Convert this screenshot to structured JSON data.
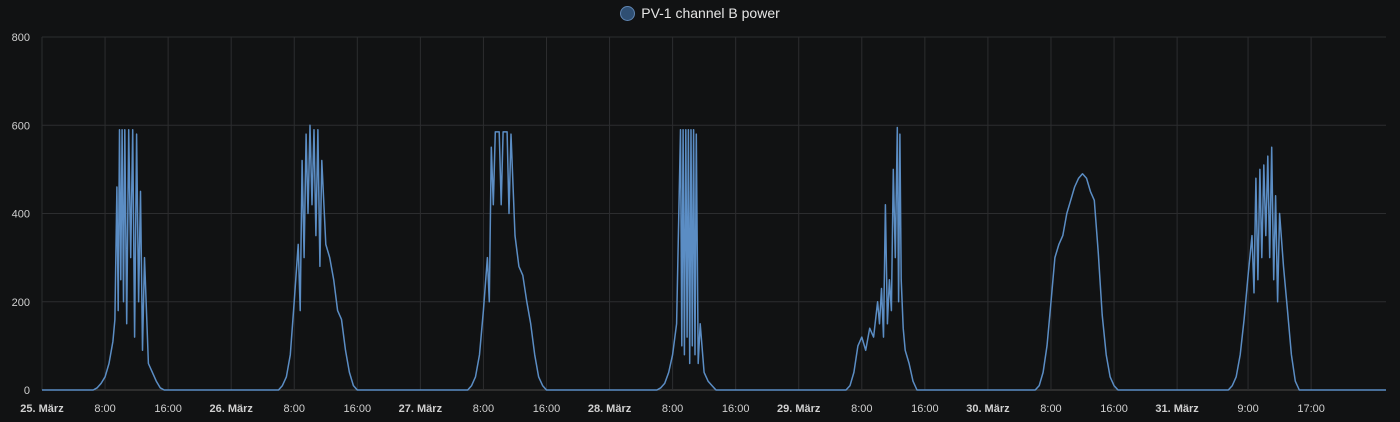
{
  "chart_data": {
    "type": "line",
    "title": "",
    "xlabel": "",
    "ylabel": "",
    "ylim": [
      0,
      800
    ],
    "y_ticks": [
      0,
      200,
      400,
      600,
      800
    ],
    "xlim": [
      "2025-03-25T00:00",
      "2025-04-01T02:30"
    ],
    "grid": true,
    "legend_position": "top-center",
    "x_tick_labels": [
      {
        "at": "2025-03-25T00:00",
        "label": "25. März",
        "bold": true
      },
      {
        "at": "2025-03-25T08:00",
        "label": "8:00",
        "bold": false
      },
      {
        "at": "2025-03-25T16:00",
        "label": "16:00",
        "bold": false
      },
      {
        "at": "2025-03-26T00:00",
        "label": "26. März",
        "bold": true
      },
      {
        "at": "2025-03-26T08:00",
        "label": "8:00",
        "bold": false
      },
      {
        "at": "2025-03-26T16:00",
        "label": "16:00",
        "bold": false
      },
      {
        "at": "2025-03-27T00:00",
        "label": "27. März",
        "bold": true
      },
      {
        "at": "2025-03-27T08:00",
        "label": "8:00",
        "bold": false
      },
      {
        "at": "2025-03-27T16:00",
        "label": "16:00",
        "bold": false
      },
      {
        "at": "2025-03-28T00:00",
        "label": "28. März",
        "bold": true
      },
      {
        "at": "2025-03-28T08:00",
        "label": "8:00",
        "bold": false
      },
      {
        "at": "2025-03-28T16:00",
        "label": "16:00",
        "bold": false
      },
      {
        "at": "2025-03-29T00:00",
        "label": "29. März",
        "bold": true
      },
      {
        "at": "2025-03-29T08:00",
        "label": "8:00",
        "bold": false
      },
      {
        "at": "2025-03-29T16:00",
        "label": "16:00",
        "bold": false
      },
      {
        "at": "2025-03-30T00:00",
        "label": "30. März",
        "bold": true
      },
      {
        "at": "2025-03-30T08:00",
        "label": "8:00",
        "bold": false
      },
      {
        "at": "2025-03-30T16:00",
        "label": "16:00",
        "bold": false
      },
      {
        "at": "2025-03-31T00:00",
        "label": "31. März",
        "bold": true
      },
      {
        "at": "2025-03-31T09:00",
        "label": "9:00",
        "bold": false
      },
      {
        "at": "2025-03-31T17:00",
        "label": "17:00",
        "bold": false
      }
    ],
    "series": [
      {
        "name": "PV-1 channel B power",
        "color": "#5b8dc4",
        "points": [
          [
            "2025-03-25T00:00",
            0
          ],
          [
            "2025-03-25T06:30",
            0
          ],
          [
            "2025-03-25T07:00",
            5
          ],
          [
            "2025-03-25T07:30",
            15
          ],
          [
            "2025-03-25T08:00",
            30
          ],
          [
            "2025-03-25T08:30",
            60
          ],
          [
            "2025-03-25T09:00",
            110
          ],
          [
            "2025-03-25T09:15",
            160
          ],
          [
            "2025-03-25T09:30",
            460
          ],
          [
            "2025-03-25T09:40",
            180
          ],
          [
            "2025-03-25T09:50",
            590
          ],
          [
            "2025-03-25T10:00",
            250
          ],
          [
            "2025-03-25T10:10",
            590
          ],
          [
            "2025-03-25T10:20",
            200
          ],
          [
            "2025-03-25T10:30",
            590
          ],
          [
            "2025-03-25T10:45",
            150
          ],
          [
            "2025-03-25T11:00",
            590
          ],
          [
            "2025-03-25T11:15",
            300
          ],
          [
            "2025-03-25T11:30",
            590
          ],
          [
            "2025-03-25T11:45",
            120
          ],
          [
            "2025-03-25T12:00",
            580
          ],
          [
            "2025-03-25T12:15",
            200
          ],
          [
            "2025-03-25T12:30",
            450
          ],
          [
            "2025-03-25T12:45",
            90
          ],
          [
            "2025-03-25T13:00",
            300
          ],
          [
            "2025-03-25T13:30",
            60
          ],
          [
            "2025-03-25T14:00",
            40
          ],
          [
            "2025-03-25T14:30",
            20
          ],
          [
            "2025-03-25T15:00",
            5
          ],
          [
            "2025-03-25T15:30",
            0
          ],
          [
            "2025-03-26T06:00",
            0
          ],
          [
            "2025-03-26T06:30",
            10
          ],
          [
            "2025-03-26T07:00",
            30
          ],
          [
            "2025-03-26T07:30",
            80
          ],
          [
            "2025-03-26T08:00",
            200
          ],
          [
            "2025-03-26T08:30",
            330
          ],
          [
            "2025-03-26T08:45",
            180
          ],
          [
            "2025-03-26T09:00",
            520
          ],
          [
            "2025-03-26T09:15",
            300
          ],
          [
            "2025-03-26T09:30",
            580
          ],
          [
            "2025-03-26T09:45",
            400
          ],
          [
            "2025-03-26T10:00",
            600
          ],
          [
            "2025-03-26T10:15",
            420
          ],
          [
            "2025-03-26T10:30",
            590
          ],
          [
            "2025-03-26T10:45",
            350
          ],
          [
            "2025-03-26T11:00",
            590
          ],
          [
            "2025-03-26T11:15",
            280
          ],
          [
            "2025-03-26T11:30",
            520
          ],
          [
            "2025-03-26T12:00",
            330
          ],
          [
            "2025-03-26T12:30",
            300
          ],
          [
            "2025-03-26T13:00",
            250
          ],
          [
            "2025-03-26T13:30",
            180
          ],
          [
            "2025-03-26T14:00",
            160
          ],
          [
            "2025-03-26T14:30",
            90
          ],
          [
            "2025-03-26T15:00",
            40
          ],
          [
            "2025-03-26T15:30",
            10
          ],
          [
            "2025-03-26T16:00",
            0
          ],
          [
            "2025-03-27T06:00",
            0
          ],
          [
            "2025-03-27T06:30",
            10
          ],
          [
            "2025-03-27T07:00",
            30
          ],
          [
            "2025-03-27T07:30",
            80
          ],
          [
            "2025-03-27T08:00",
            180
          ],
          [
            "2025-03-27T08:30",
            300
          ],
          [
            "2025-03-27T08:45",
            200
          ],
          [
            "2025-03-27T09:00",
            550
          ],
          [
            "2025-03-27T09:15",
            420
          ],
          [
            "2025-03-27T09:30",
            585
          ],
          [
            "2025-03-27T10:00",
            585
          ],
          [
            "2025-03-27T10:15",
            420
          ],
          [
            "2025-03-27T10:30",
            585
          ],
          [
            "2025-03-27T11:00",
            585
          ],
          [
            "2025-03-27T11:15",
            400
          ],
          [
            "2025-03-27T11:30",
            580
          ],
          [
            "2025-03-27T12:00",
            350
          ],
          [
            "2025-03-27T12:30",
            280
          ],
          [
            "2025-03-27T13:00",
            260
          ],
          [
            "2025-03-27T13:30",
            200
          ],
          [
            "2025-03-27T14:00",
            150
          ],
          [
            "2025-03-27T14:30",
            80
          ],
          [
            "2025-03-27T15:00",
            30
          ],
          [
            "2025-03-27T15:30",
            10
          ],
          [
            "2025-03-27T16:00",
            0
          ],
          [
            "2025-03-28T06:00",
            0
          ],
          [
            "2025-03-28T06:30",
            5
          ],
          [
            "2025-03-28T07:00",
            15
          ],
          [
            "2025-03-28T07:30",
            40
          ],
          [
            "2025-03-28T08:00",
            80
          ],
          [
            "2025-03-28T08:30",
            150
          ],
          [
            "2025-03-28T09:00",
            590
          ],
          [
            "2025-03-28T09:10",
            100
          ],
          [
            "2025-03-28T09:20",
            590
          ],
          [
            "2025-03-28T09:30",
            80
          ],
          [
            "2025-03-28T09:40",
            590
          ],
          [
            "2025-03-28T09:50",
            120
          ],
          [
            "2025-03-28T10:00",
            590
          ],
          [
            "2025-03-28T10:10",
            60
          ],
          [
            "2025-03-28T10:20",
            590
          ],
          [
            "2025-03-28T10:30",
            100
          ],
          [
            "2025-03-28T10:40",
            590
          ],
          [
            "2025-03-28T10:50",
            80
          ],
          [
            "2025-03-28T11:00",
            580
          ],
          [
            "2025-03-28T11:15",
            60
          ],
          [
            "2025-03-28T11:30",
            150
          ],
          [
            "2025-03-28T12:00",
            40
          ],
          [
            "2025-03-28T12:30",
            20
          ],
          [
            "2025-03-28T13:00",
            10
          ],
          [
            "2025-03-28T13:30",
            0
          ],
          [
            "2025-03-29T06:00",
            0
          ],
          [
            "2025-03-29T06:30",
            10
          ],
          [
            "2025-03-29T07:00",
            40
          ],
          [
            "2025-03-29T07:30",
            100
          ],
          [
            "2025-03-29T08:00",
            120
          ],
          [
            "2025-03-29T08:30",
            90
          ],
          [
            "2025-03-29T09:00",
            140
          ],
          [
            "2025-03-29T09:30",
            120
          ],
          [
            "2025-03-29T10:00",
            200
          ],
          [
            "2025-03-29T10:15",
            150
          ],
          [
            "2025-03-29T10:30",
            230
          ],
          [
            "2025-03-29T10:45",
            120
          ],
          [
            "2025-03-29T11:00",
            420
          ],
          [
            "2025-03-29T11:15",
            150
          ],
          [
            "2025-03-29T11:30",
            250
          ],
          [
            "2025-03-29T11:45",
            180
          ],
          [
            "2025-03-29T12:00",
            500
          ],
          [
            "2025-03-29T12:15",
            300
          ],
          [
            "2025-03-29T12:30",
            595
          ],
          [
            "2025-03-29T12:40",
            200
          ],
          [
            "2025-03-29T12:50",
            580
          ],
          [
            "2025-03-29T13:00",
            250
          ],
          [
            "2025-03-29T13:15",
            140
          ],
          [
            "2025-03-29T13:30",
            90
          ],
          [
            "2025-03-29T14:00",
            60
          ],
          [
            "2025-03-29T14:30",
            20
          ],
          [
            "2025-03-29T15:00",
            0
          ],
          [
            "2025-03-30T06:00",
            0
          ],
          [
            "2025-03-30T06:30",
            10
          ],
          [
            "2025-03-30T07:00",
            40
          ],
          [
            "2025-03-30T07:30",
            100
          ],
          [
            "2025-03-30T08:00",
            200
          ],
          [
            "2025-03-30T08:30",
            300
          ],
          [
            "2025-03-30T09:00",
            330
          ],
          [
            "2025-03-30T09:30",
            350
          ],
          [
            "2025-03-30T10:00",
            400
          ],
          [
            "2025-03-30T10:30",
            430
          ],
          [
            "2025-03-30T11:00",
            460
          ],
          [
            "2025-03-30T11:30",
            480
          ],
          [
            "2025-03-30T12:00",
            490
          ],
          [
            "2025-03-30T12:30",
            480
          ],
          [
            "2025-03-30T13:00",
            450
          ],
          [
            "2025-03-30T13:30",
            430
          ],
          [
            "2025-03-30T14:00",
            310
          ],
          [
            "2025-03-30T14:30",
            170
          ],
          [
            "2025-03-30T15:00",
            80
          ],
          [
            "2025-03-30T15:30",
            30
          ],
          [
            "2025-03-30T16:00",
            10
          ],
          [
            "2025-03-30T16:30",
            0
          ],
          [
            "2025-03-31T06:30",
            0
          ],
          [
            "2025-03-31T07:00",
            10
          ],
          [
            "2025-03-31T07:30",
            30
          ],
          [
            "2025-03-31T08:00",
            80
          ],
          [
            "2025-03-31T08:30",
            160
          ],
          [
            "2025-03-31T09:00",
            260
          ],
          [
            "2025-03-31T09:30",
            350
          ],
          [
            "2025-03-31T09:45",
            220
          ],
          [
            "2025-03-31T10:00",
            480
          ],
          [
            "2025-03-31T10:15",
            250
          ],
          [
            "2025-03-31T10:30",
            500
          ],
          [
            "2025-03-31T10:45",
            300
          ],
          [
            "2025-03-31T11:00",
            510
          ],
          [
            "2025-03-31T11:15",
            350
          ],
          [
            "2025-03-31T11:30",
            530
          ],
          [
            "2025-03-31T11:45",
            300
          ],
          [
            "2025-03-31T12:00",
            550
          ],
          [
            "2025-03-31T12:15",
            250
          ],
          [
            "2025-03-31T12:30",
            440
          ],
          [
            "2025-03-31T12:45",
            200
          ],
          [
            "2025-03-31T13:00",
            400
          ],
          [
            "2025-03-31T13:30",
            280
          ],
          [
            "2025-03-31T14:00",
            180
          ],
          [
            "2025-03-31T14:30",
            80
          ],
          [
            "2025-03-31T15:00",
            20
          ],
          [
            "2025-03-31T15:30",
            0
          ],
          [
            "2025-04-01T02:30",
            0
          ]
        ]
      }
    ]
  }
}
